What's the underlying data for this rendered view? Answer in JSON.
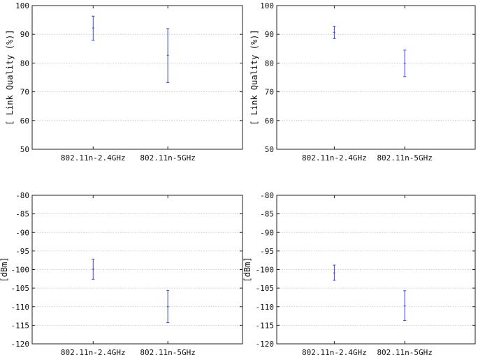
{
  "colors": {
    "errorbar": "#3c44c8",
    "grid": "#bdbdbd",
    "axes": "#222222",
    "text": "#111111"
  },
  "chart_data": [
    {
      "type": "errorbar",
      "ylabel": "[ Link Quality (%)]",
      "ylim": [
        50,
        100
      ],
      "yticks": [
        50,
        60,
        70,
        80,
        90,
        100
      ],
      "grid": "horizontal-dotted",
      "categories": [
        "802.11n-2.4GHz",
        "802.11n-5GHz"
      ],
      "mean": [
        92.2,
        82.7
      ],
      "lower": [
        87.9,
        73.2
      ],
      "upper": [
        96.3,
        92.0
      ]
    },
    {
      "type": "errorbar",
      "ylabel": "[ Link Quality (%)]",
      "ylim": [
        50,
        100
      ],
      "yticks": [
        50,
        60,
        70,
        80,
        90,
        100
      ],
      "grid": "horizontal-dotted",
      "categories": [
        "802.11n-2.4GHz",
        "802.11n-5GHz"
      ],
      "mean": [
        90.7,
        79.9
      ],
      "lower": [
        88.5,
        75.3
      ],
      "upper": [
        92.8,
        84.5
      ]
    },
    {
      "type": "errorbar",
      "ylabel": "[dBm]",
      "ylim": [
        -120,
        -80
      ],
      "yticks": [
        -120,
        -115,
        -110,
        -105,
        -100,
        -95,
        -90,
        -85,
        -80
      ],
      "grid": "horizontal-dotted",
      "categories": [
        "802.11n-2.4GHz",
        "802.11n-5GHz"
      ],
      "mean": [
        -99.9,
        -110.0
      ],
      "lower": [
        -102.6,
        -114.3
      ],
      "upper": [
        -97.2,
        -105.6
      ]
    },
    {
      "type": "errorbar",
      "ylabel": "[dBm]",
      "ylim": [
        -120,
        -80
      ],
      "yticks": [
        -120,
        -115,
        -110,
        -105,
        -100,
        -95,
        -90,
        -85,
        -80
      ],
      "grid": "horizontal-dotted",
      "categories": [
        "802.11n-2.4GHz",
        "802.11n-5GHz"
      ],
      "mean": [
        -100.9,
        -109.8
      ],
      "lower": [
        -102.9,
        -113.7
      ],
      "upper": [
        -98.8,
        -105.7
      ]
    }
  ]
}
